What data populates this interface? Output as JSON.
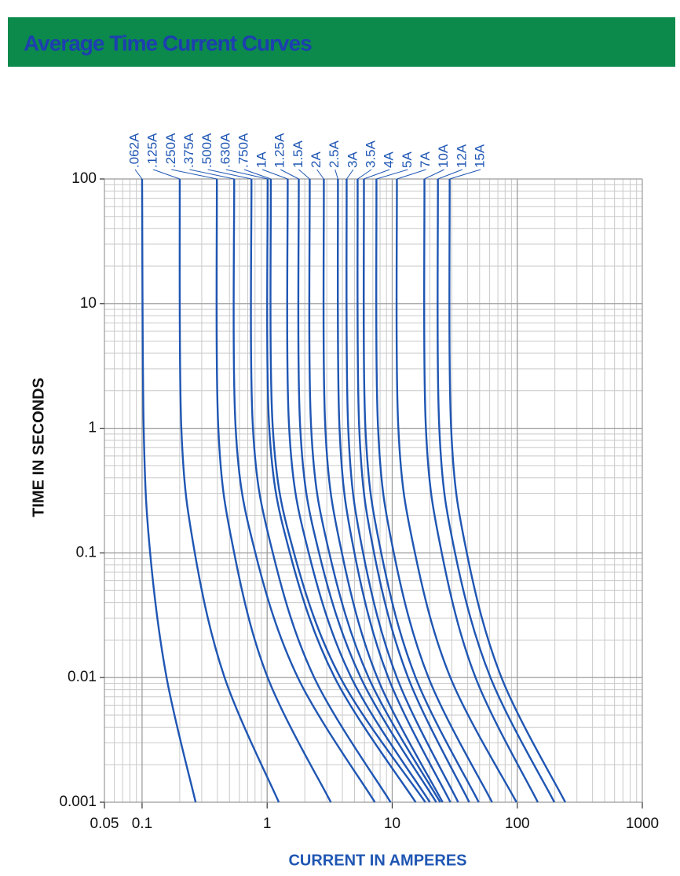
{
  "chart_data": {
    "type": "line",
    "title": "Average Time Current Curves",
    "x_label": "CURRENT IN AMPERES",
    "y_label": "TIME IN SECONDS",
    "xscale": "log",
    "yscale": "log",
    "grid": true,
    "minor_grid": true,
    "xlim": [
      0.05,
      1000
    ],
    "ylim": [
      0.001,
      100
    ],
    "xticks": [
      0.05,
      0.1,
      1,
      10,
      100,
      1000
    ],
    "yticks": [
      0.001,
      0.01,
      0.1,
      1,
      10,
      100
    ],
    "color": "#1f56b3",
    "series": [
      {
        "name": ".062A",
        "x": [
          0.1,
          0.103,
          0.116,
          0.157,
          0.268
        ],
        "values": [
          100,
          1,
          0.1,
          0.01,
          0.001
        ]
      },
      {
        "name": ".125A",
        "x": [
          0.2,
          0.206,
          0.264,
          0.457,
          1.24
        ],
        "values": [
          100,
          1,
          0.1,
          0.01,
          0.001
        ]
      },
      {
        "name": ".250A",
        "x": [
          0.396,
          0.407,
          0.545,
          1.01,
          3.23
        ],
        "values": [
          100,
          1,
          0.1,
          0.01,
          0.001
        ]
      },
      {
        "name": ".375A",
        "x": [
          0.545,
          0.56,
          0.805,
          1.76,
          7.27
        ],
        "values": [
          100,
          1,
          0.1,
          0.01,
          0.001
        ]
      },
      {
        "name": ".500A",
        "x": [
          0.749,
          0.77,
          1.11,
          2.38,
          9.71
        ],
        "values": [
          100,
          1,
          0.1,
          0.01,
          0.001
        ]
      },
      {
        "name": ".630A",
        "x": [
          1.01,
          1.04,
          1.52,
          3.47,
          15.4
        ],
        "values": [
          100,
          1,
          0.1,
          0.01,
          0.001
        ]
      },
      {
        "name": ".750A",
        "x": [
          1.07,
          1.11,
          1.64,
          3.85,
          18.4
        ],
        "values": [
          100,
          1,
          0.1,
          0.01,
          0.001
        ]
      },
      {
        "name": "1A",
        "x": [
          1.46,
          1.5,
          2.15,
          4.71,
          20.0
        ],
        "values": [
          100,
          1,
          0.1,
          0.01,
          0.001
        ]
      },
      {
        "name": "1.25A",
        "x": [
          1.79,
          1.84,
          2.6,
          5.6,
          22.5
        ],
        "values": [
          100,
          1,
          0.1,
          0.01,
          0.001
        ]
      },
      {
        "name": "1.5A",
        "x": [
          2.19,
          2.25,
          3.14,
          6.48,
          24.2
        ],
        "values": [
          100,
          1,
          0.1,
          0.01,
          0.001
        ]
      },
      {
        "name": "2A",
        "x": [
          2.84,
          2.92,
          3.96,
          7.6,
          25.3
        ],
        "values": [
          100,
          1,
          0.1,
          0.01,
          0.001
        ]
      },
      {
        "name": "2.5A",
        "x": [
          3.68,
          3.79,
          4.99,
          9.3,
          29.2
        ],
        "values": [
          100,
          1,
          0.1,
          0.01,
          0.001
        ]
      },
      {
        "name": "3A",
        "x": [
          4.32,
          4.45,
          5.85,
          10.9,
          33.7
        ],
        "values": [
          100,
          1,
          0.1,
          0.01,
          0.001
        ]
      },
      {
        "name": "3.5A",
        "x": [
          5.29,
          5.45,
          7.16,
          13.4,
          41.3
        ],
        "values": [
          100,
          1,
          0.1,
          0.01,
          0.001
        ]
      },
      {
        "name": "4A",
        "x": [
          5.94,
          6.11,
          8.17,
          15.4,
          49.2
        ],
        "values": [
          100,
          1,
          0.1,
          0.01,
          0.001
        ]
      },
      {
        "name": "5A",
        "x": [
          7.48,
          7.71,
          10.3,
          19.5,
          62.9
        ],
        "values": [
          100,
          1,
          0.1,
          0.01,
          0.001
        ]
      },
      {
        "name": "7A",
        "x": [
          10.9,
          11.2,
          15.2,
          29.2,
          98.6
        ],
        "values": [
          100,
          1,
          0.1,
          0.01,
          0.001
        ]
      },
      {
        "name": "10A",
        "x": [
          18.1,
          18.6,
          24.9,
          46.4,
          146
        ],
        "values": [
          100,
          1,
          0.1,
          0.01,
          0.001
        ]
      },
      {
        "name": "12A",
        "x": [
          23.2,
          23.8,
          31.8,
          61.1,
          198
        ],
        "values": [
          100,
          1,
          0.1,
          0.01,
          0.001
        ]
      },
      {
        "name": "15A",
        "x": [
          28.8,
          29.6,
          39.5,
          74.8,
          242
        ],
        "values": [
          100,
          1,
          0.1,
          0.01,
          0.001
        ]
      }
    ]
  }
}
